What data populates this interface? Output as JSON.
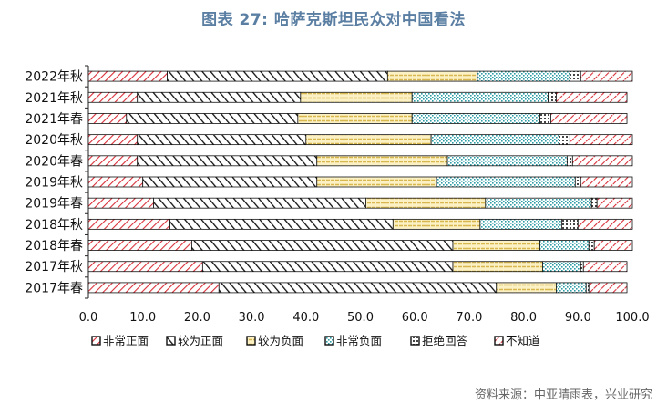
{
  "title": "图表 27: 哈萨克斯坦民众对中国看法",
  "source": "资料来源：中亚晴雨表，兴业研究",
  "chart_data": {
    "type": "bar",
    "stacked": true,
    "orientation": "horizontal",
    "categories": [
      "2022年秋",
      "2021年秋",
      "2021年春",
      "2020年秋",
      "2020年春",
      "2019年秋",
      "2019年春",
      "2018年秋",
      "2018年春",
      "2017年秋",
      "2017年春"
    ],
    "series": [
      {
        "name": "非常正面",
        "color": "#d9303a",
        "values": [
          14.5,
          9.0,
          7.0,
          9.0,
          9.0,
          10.0,
          12.0,
          15.0,
          19.0,
          21.0,
          24.0
        ]
      },
      {
        "name": "较为正面",
        "color": "#111111",
        "values": [
          40.5,
          30.0,
          31.5,
          31.0,
          33.0,
          32.0,
          39.0,
          41.0,
          48.0,
          46.0,
          51.0
        ]
      },
      {
        "name": "较为负面",
        "color": "#e6cc6a",
        "values": [
          16.5,
          20.5,
          21.0,
          23.0,
          24.0,
          22.0,
          22.0,
          16.0,
          16.0,
          16.5,
          11.0
        ]
      },
      {
        "name": "非常负面",
        "color": "#2e9ea6",
        "values": [
          17.0,
          25.0,
          23.5,
          23.5,
          22.0,
          25.5,
          19.5,
          15.0,
          9.0,
          7.0,
          5.5
        ]
      },
      {
        "name": "拒绝回答",
        "color": "#111111",
        "values": [
          2.0,
          1.5,
          2.0,
          2.0,
          1.0,
          1.0,
          1.0,
          3.0,
          1.0,
          0.5,
          0.5
        ]
      },
      {
        "name": "不知道",
        "color": "#d9303a",
        "values": [
          9.5,
          13.0,
          14.0,
          11.5,
          11.0,
          9.5,
          6.5,
          10.0,
          7.0,
          8.0,
          7.0
        ]
      }
    ],
    "xlim": [
      0,
      100
    ],
    "xticks": [
      "0.0",
      "10.0",
      "20.0",
      "30.0",
      "40.0",
      "50.0",
      "60.0",
      "70.0",
      "80.0",
      "90.0",
      "100.0"
    ],
    "legend": "bottom"
  }
}
